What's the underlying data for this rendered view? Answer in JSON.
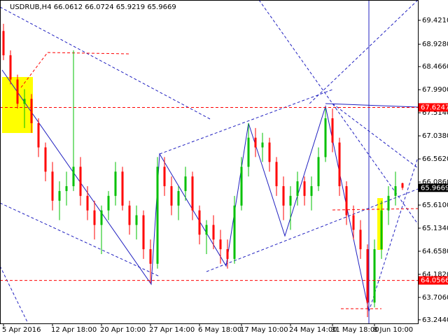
{
  "chart_data": {
    "type": "candlestick",
    "title": "USDRUB,H4  66.0612 66.0724 65.9219 65.9669",
    "categories": [
      "5 Apr 2016",
      null,
      null,
      null,
      null,
      null,
      null,
      "12 Apr 18:00",
      null,
      null,
      null,
      null,
      null,
      null,
      "20 Apr 10:00",
      null,
      null,
      null,
      null,
      null,
      null,
      "27 Apr 14:00",
      null,
      null,
      null,
      null,
      null,
      null,
      "6 May 18:00",
      null,
      null,
      null,
      null,
      null,
      "17 May 10:00",
      null,
      null,
      null,
      null,
      null,
      null,
      "24 May 14:00",
      null,
      null,
      null,
      null,
      null,
      "31 May 18:00",
      null,
      null,
      null,
      null,
      null,
      "8 Jun 10:00",
      null,
      null,
      null,
      null
    ],
    "open": [
      69.2,
      68.7,
      68.2,
      67.7,
      67.8,
      67.3,
      66.8,
      66.3,
      65.7,
      65.9,
      66.0,
      66.4,
      65.8,
      65.5,
      65.2,
      65.5,
      65.8,
      66.3,
      65.6,
      65.2,
      65.4,
      64.7,
      64.4,
      66.4,
      66.0,
      65.6,
      65.9,
      66.2,
      65.5,
      65.0,
      65.2,
      64.9,
      64.7,
      64.5,
      65.6,
      66.4,
      67.0,
      66.8,
      66.9,
      66.5,
      66.0,
      65.6,
      65.8,
      66.1,
      65.8,
      66.0,
      66.6,
      67.4,
      66.9,
      66.0,
      65.4,
      65.1,
      64.7,
      63.6,
      64.7,
      65.5,
      65.8,
      66.0612
    ],
    "high": [
      69.35,
      68.8,
      68.3,
      68.0,
      67.9,
      67.4,
      66.9,
      66.5,
      66.1,
      66.3,
      68.8,
      66.6,
      66.0,
      65.7,
      65.6,
      65.9,
      66.5,
      66.4,
      65.7,
      65.6,
      65.5,
      64.9,
      66.6,
      66.6,
      66.2,
      66.0,
      66.4,
      66.3,
      65.6,
      65.3,
      65.4,
      65.1,
      64.9,
      65.8,
      66.6,
      67.3,
      67.2,
      67.1,
      67.0,
      66.6,
      66.2,
      66.0,
      66.3,
      66.2,
      66.2,
      66.8,
      67.6,
      67.6,
      67.0,
      66.1,
      65.6,
      65.3,
      64.8,
      64.9,
      65.7,
      66.0,
      66.3,
      66.0724
    ],
    "low": [
      68.6,
      68.1,
      67.6,
      67.2,
      67.1,
      66.6,
      66.1,
      65.5,
      65.3,
      65.6,
      65.9,
      65.6,
      65.3,
      64.9,
      64.6,
      65.3,
      65.6,
      65.5,
      65.0,
      64.9,
      64.5,
      64.0,
      64.3,
      65.8,
      65.4,
      65.3,
      65.7,
      65.3,
      64.8,
      64.6,
      64.7,
      64.4,
      64.3,
      64.4,
      65.5,
      66.2,
      66.6,
      66.5,
      66.3,
      65.8,
      65.3,
      65.1,
      65.6,
      65.6,
      65.5,
      65.9,
      66.5,
      66.7,
      65.8,
      65.2,
      64.9,
      64.5,
      63.3,
      63.5,
      64.5,
      65.2,
      65.6,
      65.9219
    ],
    "close": [
      68.7,
      68.2,
      67.7,
      67.8,
      67.3,
      66.8,
      66.3,
      65.7,
      65.9,
      66.0,
      66.4,
      65.8,
      65.5,
      65.2,
      65.5,
      65.8,
      66.3,
      65.6,
      65.2,
      65.4,
      64.7,
      64.4,
      66.4,
      66.0,
      65.6,
      65.9,
      66.2,
      65.5,
      65.0,
      65.2,
      64.9,
      64.7,
      64.5,
      65.6,
      66.4,
      67.0,
      66.8,
      66.9,
      66.5,
      66.0,
      65.6,
      65.8,
      66.1,
      65.8,
      66.0,
      66.6,
      67.4,
      66.9,
      66.0,
      65.4,
      65.1,
      64.7,
      63.6,
      64.7,
      65.5,
      65.8,
      66.0,
      65.9669
    ],
    "up_color": "#00c000",
    "down_color": "#ff0000",
    "ylim": [
      63.17,
      69.84
    ],
    "yticks": [
      {
        "value": 69.421,
        "label": "69.4210"
      },
      {
        "value": 68.928,
        "label": "68.9280"
      },
      {
        "value": 68.466,
        "label": "68.4660"
      },
      {
        "value": 67.99,
        "label": "67.9900"
      },
      {
        "value": 67.514,
        "label": "67.5140"
      },
      {
        "value": 67.038,
        "label": "67.0380"
      },
      {
        "value": 66.562,
        "label": "66.5620"
      },
      {
        "value": 66.086,
        "label": "66.0860"
      },
      {
        "value": 65.61,
        "label": "65.6100"
      },
      {
        "value": 65.134,
        "label": "65.1340"
      },
      {
        "value": 64.658,
        "label": "64.6580"
      },
      {
        "value": 64.182,
        "label": "64.1820"
      },
      {
        "value": 63.706,
        "label": "63.7060"
      },
      {
        "value": 63.244,
        "label": "63.2440"
      }
    ],
    "levels": [
      67.6247,
      64.0566
    ],
    "level_color": "#ff0000"
  }
}
